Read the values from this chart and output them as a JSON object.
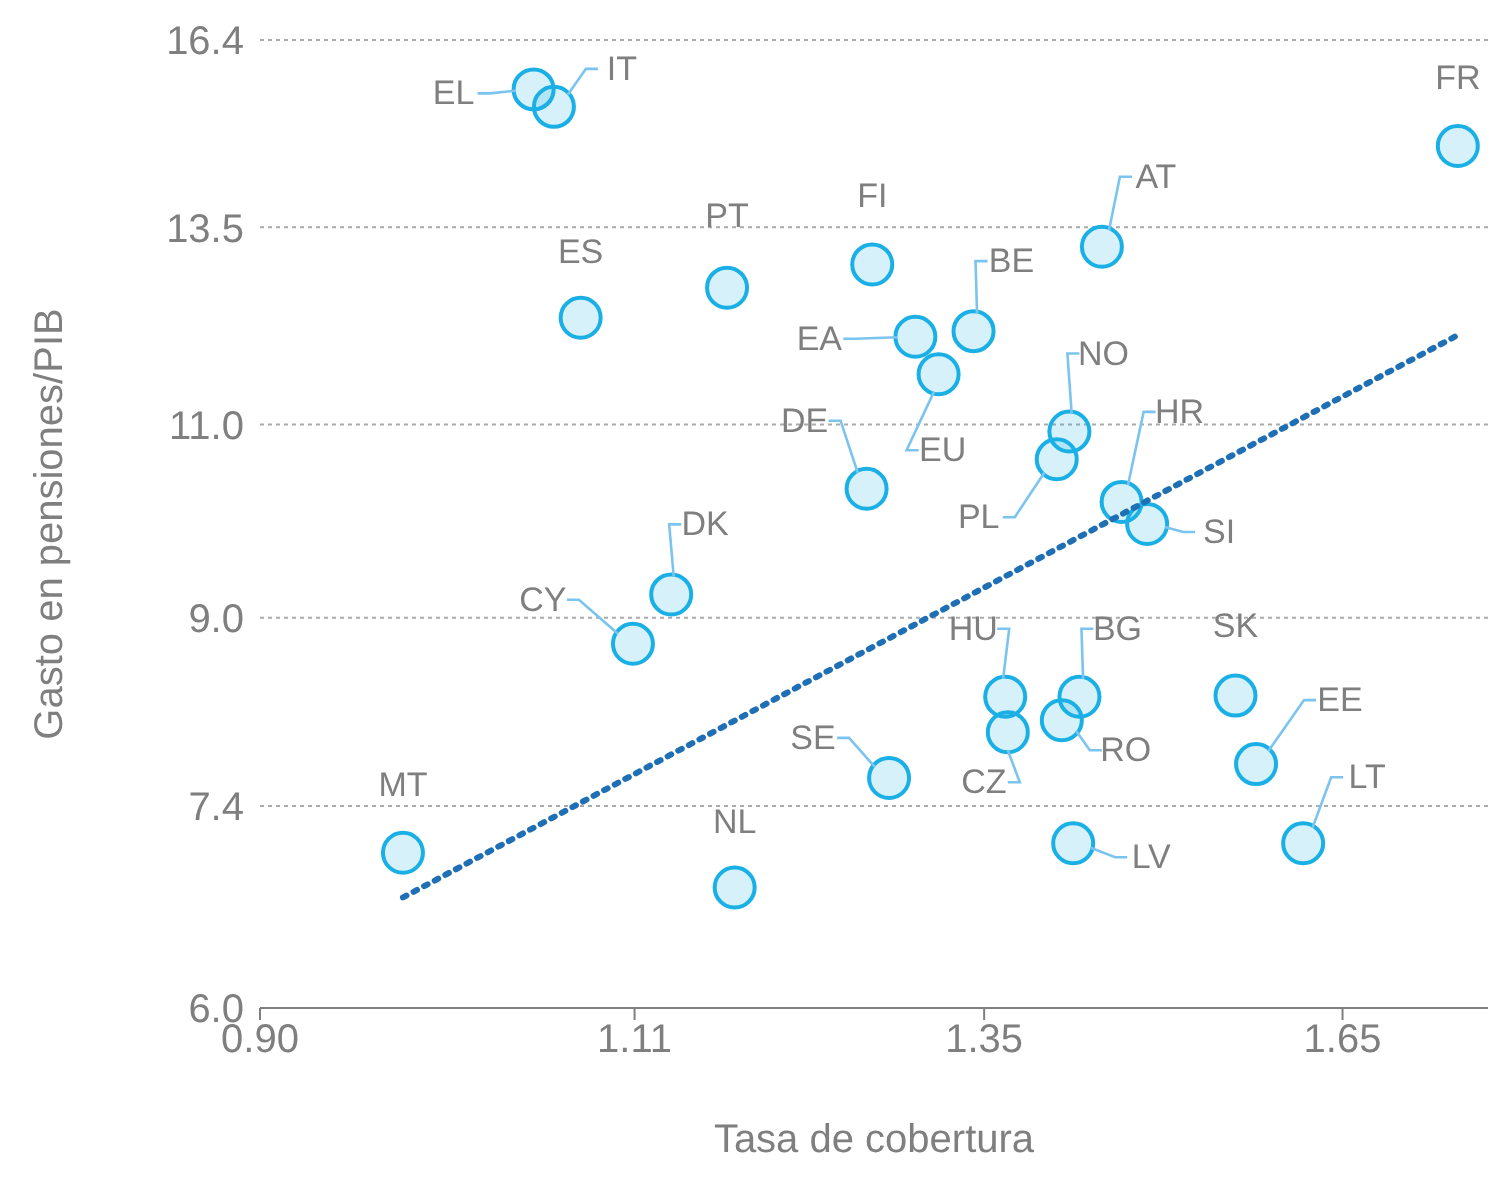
{
  "chart_data": {
    "type": "scatter",
    "xlabel": "Tasa de cobertura",
    "ylabel": "Gasto en pensiones/PIB",
    "log": "xy",
    "grid": "y",
    "legend": false,
    "xlim": [
      0.9,
      1.79
    ],
    "ylim": [
      6.0,
      16.4
    ],
    "xticks": [
      {
        "value": 0.9,
        "label": "0.90"
      },
      1.11,
      1.35,
      1.65
    ],
    "yticks": [
      {
        "value": 6,
        "label": "6.0"
      },
      7.4,
      {
        "value": 9,
        "label": "9.0"
      },
      {
        "value": 11,
        "label": "11.0"
      },
      13.5,
      16.4
    ],
    "series": [
      {
        "color": "#1ab0e6",
        "marker": "circle",
        "x": [
          1.049,
          1.061,
          1.76,
          1.442,
          1.268,
          1.169,
          1.077,
          1.342,
          1.299,
          1.316,
          1.416,
          1.406,
          1.264,
          1.458,
          1.479,
          1.133,
          1.109,
          1.366,
          1.424,
          1.554,
          1.41,
          1.368,
          1.572,
          1.28,
          1.419,
          1.614,
          0.975,
          1.174
        ],
        "values": [
          15.58,
          15.3,
          14.69,
          13.23,
          12.99,
          12.68,
          12.29,
          12.12,
          12.05,
          11.59,
          10.92,
          10.61,
          10.29,
          10.15,
          9.92,
          9.22,
          8.76,
          8.29,
          8.29,
          8.3,
          8.09,
          7.99,
          7.73,
          7.62,
          7.12,
          7.12,
          7.05,
          6.8
        ]
      },
      {
        "type": "line",
        "color": "#1f6fb5",
        "line_style": "dotted",
        "marker": "none",
        "x": [
          0.975,
          1.76
        ],
        "values": [
          6.73,
          12.07
        ]
      }
    ],
    "annotations": [
      {
        "text": "EL",
        "x": 1.049,
        "y": 15.58
      },
      {
        "text": "IT",
        "x": 1.061,
        "y": 15.3
      },
      {
        "text": "FR",
        "x": 1.76,
        "y": 14.69
      },
      {
        "text": "AT",
        "x": 1.442,
        "y": 13.23
      },
      {
        "text": "FI",
        "x": 1.268,
        "y": 12.99
      },
      {
        "text": "PT",
        "x": 1.169,
        "y": 12.68
      },
      {
        "text": "ES",
        "x": 1.077,
        "y": 12.29
      },
      {
        "text": "BE",
        "x": 1.342,
        "y": 12.12
      },
      {
        "text": "EA",
        "x": 1.299,
        "y": 12.05
      },
      {
        "text": "EU",
        "x": 1.316,
        "y": 11.59
      },
      {
        "text": "NO",
        "x": 1.416,
        "y": 10.92
      },
      {
        "text": "PL",
        "x": 1.406,
        "y": 10.61
      },
      {
        "text": "DE",
        "x": 1.264,
        "y": 10.29
      },
      {
        "text": "HR",
        "x": 1.458,
        "y": 10.15
      },
      {
        "text": "SI",
        "x": 1.479,
        "y": 9.92
      },
      {
        "text": "DK",
        "x": 1.133,
        "y": 9.22
      },
      {
        "text": "CY",
        "x": 1.109,
        "y": 8.76
      },
      {
        "text": "HU",
        "x": 1.366,
        "y": 8.29
      },
      {
        "text": "BG",
        "x": 1.424,
        "y": 8.29
      },
      {
        "text": "SK",
        "x": 1.554,
        "y": 8.3
      },
      {
        "text": "RO",
        "x": 1.41,
        "y": 8.09
      },
      {
        "text": "CZ",
        "x": 1.368,
        "y": 7.99
      },
      {
        "text": "EE",
        "x": 1.572,
        "y": 7.73
      },
      {
        "text": "SE",
        "x": 1.28,
        "y": 7.62
      },
      {
        "text": "LV",
        "x": 1.419,
        "y": 7.12
      },
      {
        "text": "LT",
        "x": 1.614,
        "y": 7.12
      },
      {
        "text": "MT",
        "x": 0.975,
        "y": 7.05
      },
      {
        "text": "NL",
        "x": 1.174,
        "y": 6.8
      }
    ]
  }
}
